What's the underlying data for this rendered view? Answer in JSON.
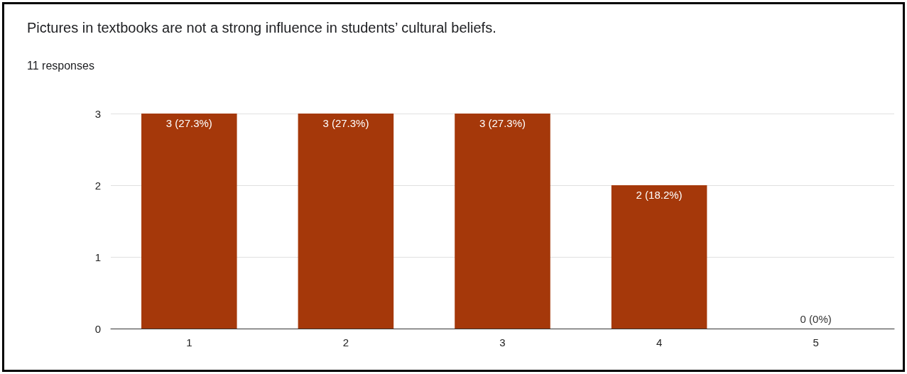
{
  "chart_data": {
    "type": "bar",
    "title": "Pictures in textbooks are not a strong influence in students’ cultural beliefs.",
    "subtitle": "11 responses",
    "categories": [
      "1",
      "2",
      "3",
      "4",
      "5"
    ],
    "values": [
      3,
      3,
      3,
      2,
      0
    ],
    "value_labels": [
      "3 (27.3%)",
      "3 (27.3%)",
      "3 (27.3%)",
      "2 (18.2%)",
      "0 (0%)"
    ],
    "color": "#a5380a",
    "ylim": [
      0,
      3
    ],
    "yticks": [
      0,
      1,
      2,
      3
    ],
    "grid": "y"
  }
}
